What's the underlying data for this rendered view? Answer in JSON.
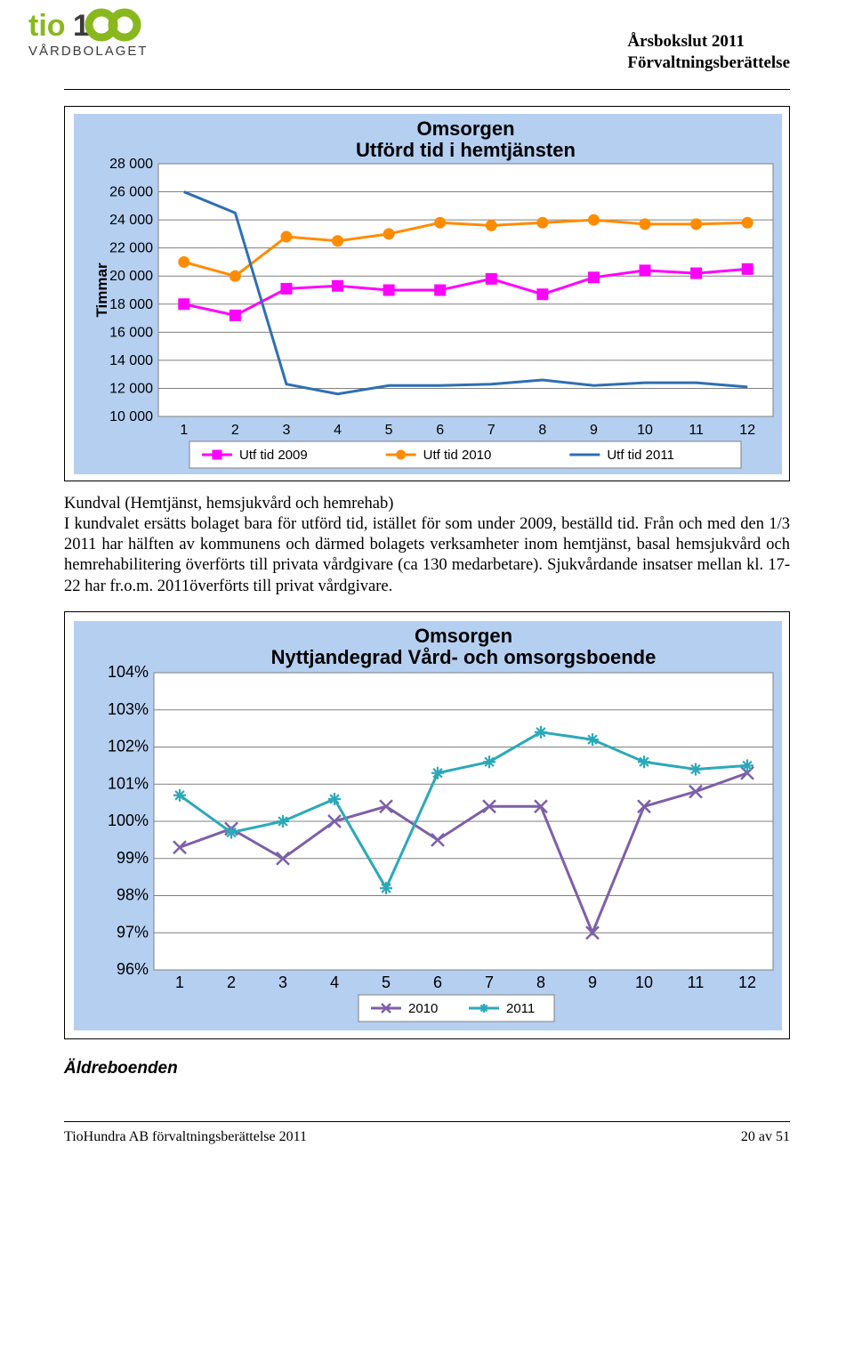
{
  "header": {
    "title1": "Årsbokslut 2011",
    "title2": "Förvaltningsberättelse"
  },
  "logo": {
    "brand_top": "tio",
    "brand_word": "VÅRDBOLAGET",
    "green": "#89b81e",
    "dark": "#3b3b3b"
  },
  "chart1": {
    "type": "line",
    "title_l1": "Omsorgen",
    "title_l2": "Utförd tid i hemtjänsten",
    "ylabel": "Timmar",
    "background_color": "#b5cff1",
    "plot_color": "#ffffff",
    "grid_color": "#808080",
    "tick_fontsize": 16,
    "ylabel_fontsize": 17,
    "ylim": [
      10000,
      28000
    ],
    "ytick_step": 2000,
    "yticks": [
      "10 000",
      "12 000",
      "14 000",
      "16 000",
      "18 000",
      "20 000",
      "22 000",
      "24 000",
      "26 000",
      "28 000"
    ],
    "categories": [
      "1",
      "2",
      "3",
      "4",
      "5",
      "6",
      "7",
      "8",
      "9",
      "10",
      "11",
      "12"
    ],
    "series": [
      {
        "name": "Utf tid 2009",
        "color": "#ff00ff",
        "marker": "square",
        "values": [
          18000,
          17200,
          19100,
          19300,
          19000,
          19000,
          19800,
          18700,
          19900,
          20400,
          20200,
          20500
        ]
      },
      {
        "name": "Utf tid 2010",
        "color": "#ff8c00",
        "marker": "circle",
        "values": [
          21000,
          20000,
          22800,
          22500,
          23000,
          23800,
          23600,
          23800,
          24000,
          23700,
          23700,
          23800
        ]
      },
      {
        "name": "Utf tid 2011",
        "color": "#2f6fb3",
        "marker": "none",
        "values": [
          26000,
          24500,
          12300,
          11600,
          12200,
          12200,
          12300,
          12600,
          12200,
          12400,
          12400,
          12100
        ]
      }
    ]
  },
  "para": {
    "l1": "Kundval (Hemtjänst, hemsjukvård och hemrehab)",
    "body": "I kundvalet ersätts bolaget bara för utförd tid, istället för som under 2009, beställd tid. Från och med den 1/3 2011 har hälften av kommunens och därmed bolagets verksamheter inom hemtjänst, basal hemsjukvård och hemrehabilitering överförts till privata vårdgivare (ca 130 medarbetare). Sjukvårdande insatser mellan kl. 17-22 har fr.o.m. 2011överförts till privat vårdgivare."
  },
  "chart2": {
    "type": "line",
    "title_l1": "Omsorgen",
    "title_l2": "Nyttjandegrad Vård- och omsorgsboende",
    "background_color": "#b5cff1",
    "plot_color": "#ffffff",
    "grid_color": "#808080",
    "tick_fontsize": 18,
    "ylim": [
      96,
      104
    ],
    "ytick_step": 1,
    "yticks": [
      "96%",
      "97%",
      "98%",
      "99%",
      "100%",
      "101%",
      "102%",
      "103%",
      "104%"
    ],
    "categories": [
      "1",
      "2",
      "3",
      "4",
      "5",
      "6",
      "7",
      "8",
      "9",
      "10",
      "11",
      "12"
    ],
    "series": [
      {
        "name": "2010",
        "color": "#7d5fa8",
        "marker": "x",
        "values": [
          99.3,
          99.8,
          99.0,
          100.0,
          100.4,
          99.5,
          100.4,
          100.4,
          97.0,
          100.4,
          100.8,
          101.3
        ]
      },
      {
        "name": "2011",
        "color": "#2aa9b8",
        "marker": "star",
        "values": [
          100.7,
          99.7,
          100.0,
          100.6,
          98.2,
          101.3,
          101.6,
          102.4,
          102.2,
          101.6,
          101.4,
          101.5
        ]
      }
    ]
  },
  "section2": {
    "heading": "Äldreboenden"
  },
  "footer": {
    "left": "TioHundra AB förvaltningsberättelse 2011",
    "right": "20 av 51"
  }
}
